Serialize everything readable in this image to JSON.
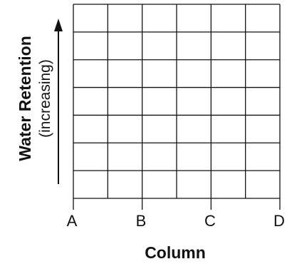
{
  "diagram": {
    "x_axis": {
      "title": "Column",
      "labels": [
        "A",
        "B",
        "C",
        "D"
      ]
    },
    "y_axis": {
      "title": "Water Retention",
      "subtitle": "(increasing)",
      "direction": "up"
    },
    "grid": {
      "rows": 7,
      "columns": 6
    }
  }
}
